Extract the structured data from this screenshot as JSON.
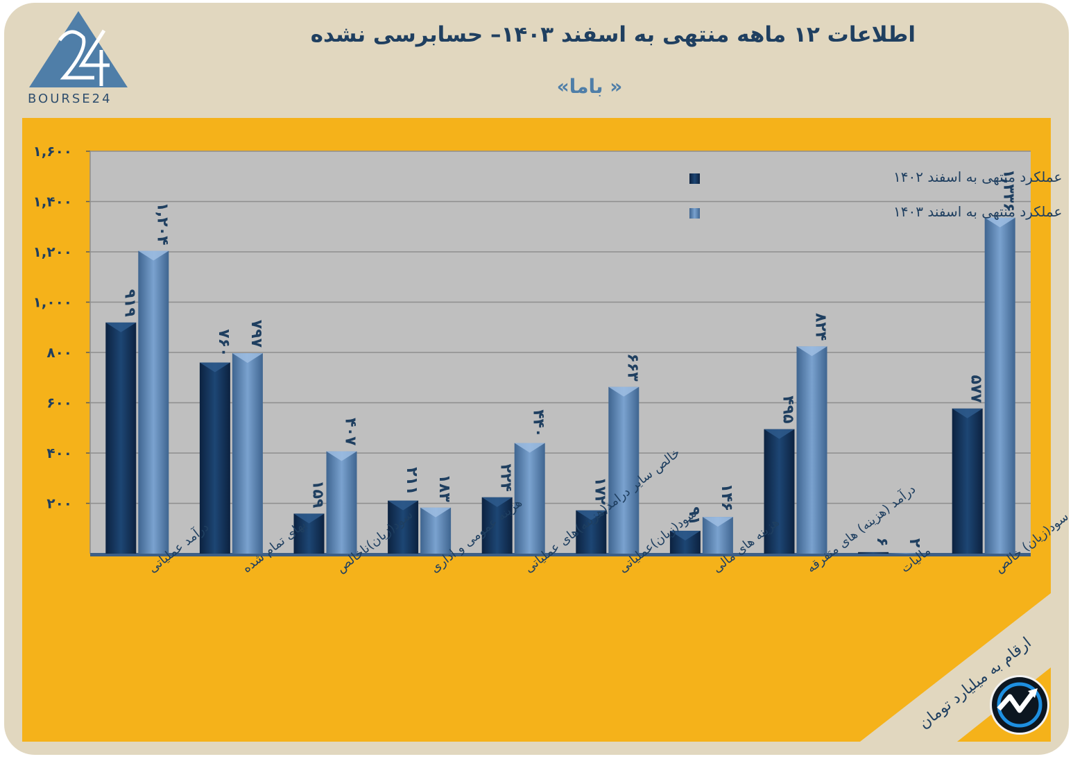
{
  "header": {
    "title": "اطلاعات ۱۲ ماهه منتهی به اسفند  ۱۴۰۳– حسابرسی نشده",
    "subtitle": "« باما»"
  },
  "logo": {
    "text": "BOURSE24",
    "mark": "24"
  },
  "note": "ارقام به میلیارد تومان",
  "colors": {
    "frame": "#e1d7bf",
    "panel": "#f5b21a",
    "series_1402": "#15345a",
    "series_1403": "#5d85b4",
    "title": "#1f3f60"
  },
  "chart_data": {
    "type": "bar",
    "categories": [
      "درآمد عملیاتی",
      "بهای تمام شده",
      "سود(زیان)ناخالص",
      "هزینه عمومی و اداری",
      "خالص سایر درامد(هزینه)های عملیاتی",
      "سود(زیان)عملیاتی",
      "هزینه های مالی",
      "درآمد (هزینه) های متفرقه",
      "مالیات",
      "سود(زیان) خالص"
    ],
    "series": [
      {
        "name": "عملکرد منتهی به اسفند ۱۴۰۲",
        "values": [
          919,
          760,
          159,
          211,
          224,
          172,
          91,
          495,
          6,
          577
        ],
        "labels": [
          "۹۱۹",
          "۷۶۰",
          "۱۵۹",
          "۲۱۱",
          "۲۲۴",
          "۱۷۲",
          "۹۱",
          "۴۹۵",
          "۶",
          "۵۷۷"
        ]
      },
      {
        "name": "عملکرد منتهی به اسفند ۱۴۰۳",
        "values": [
          1204,
          797,
          407,
          183,
          440,
          663,
          146,
          824,
          2,
          1336
        ],
        "labels": [
          "۱,۲۰۴",
          "۷۹۷",
          "۴۰۷",
          "۱۸۳",
          "۴۴۰",
          "۶۶۳",
          "۱۴۶",
          "۸۲۴",
          "۲",
          "۱,۳۳۶"
        ]
      }
    ],
    "y_ticks": [
      {
        "value": 200,
        "label": "۲۰۰"
      },
      {
        "value": 400,
        "label": "۴۰۰"
      },
      {
        "value": 600,
        "label": "۶۰۰"
      },
      {
        "value": 800,
        "label": "۸۰۰"
      },
      {
        "value": 1000,
        "label": "۱,۰۰۰"
      },
      {
        "value": 1200,
        "label": "۱,۲۰۰"
      },
      {
        "value": 1400,
        "label": "۱,۴۰۰"
      },
      {
        "value": 1600,
        "label": "۱,۶۰۰"
      }
    ],
    "ylim": [
      0,
      1600
    ],
    "grid": true,
    "legend_position": "top-right"
  }
}
